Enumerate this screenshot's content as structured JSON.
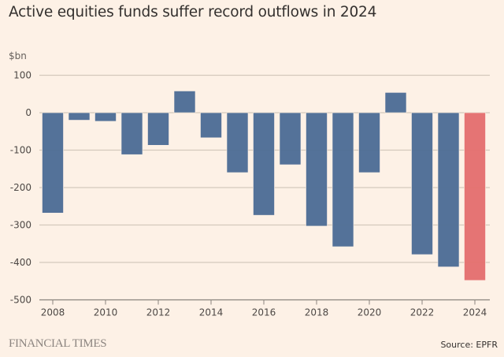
{
  "header": {
    "title": "Active equities funds suffer record outflows in 2024",
    "unit_label": "$bn"
  },
  "footer": {
    "brand": "FINANCIAL TIMES",
    "source": "Source: EPFR"
  },
  "colors": {
    "background": "#fdf1e6",
    "bar": "#4e6d96",
    "highlight_bar": "#e46f70",
    "grid": "#d4c9bd",
    "axis": "#8a847e"
  },
  "chart_data": {
    "type": "bar",
    "title": "Active equities funds suffer record outflows in 2024",
    "xlabel": "",
    "ylabel": "$bn",
    "ylim": [
      -500,
      100
    ],
    "yticks": [
      100,
      0,
      -100,
      -200,
      -300,
      -400,
      -500
    ],
    "xtick_labels": [
      "2008",
      "2010",
      "2012",
      "2014",
      "2016",
      "2018",
      "2020",
      "2022",
      "2024"
    ],
    "grid": true,
    "highlight_category": "2024",
    "categories": [
      "2008",
      "2009",
      "2010",
      "2011",
      "2012",
      "2013",
      "2014",
      "2015",
      "2016",
      "2017",
      "2018",
      "2019",
      "2020",
      "2021",
      "2022",
      "2023",
      "2024"
    ],
    "values": [
      -268,
      -20,
      -23,
      -112,
      -87,
      58,
      -67,
      -160,
      -274,
      -139,
      -303,
      -358,
      -160,
      54,
      -379,
      -412,
      -448
    ]
  }
}
